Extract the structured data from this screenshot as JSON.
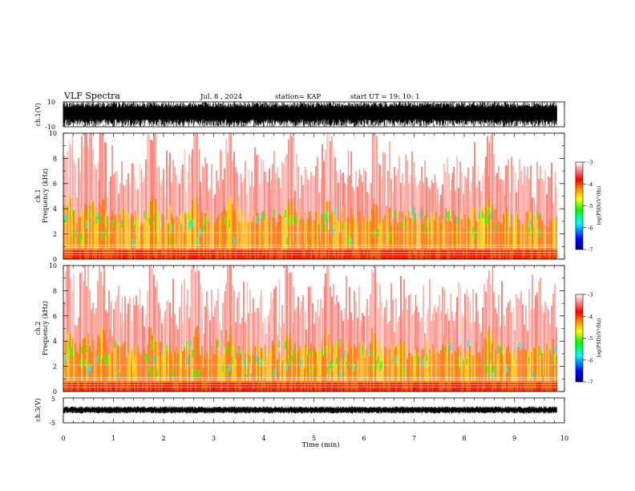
{
  "header": {
    "title": "VLF Spectra",
    "date": "Jul. 8 , 2024",
    "station": "station= KAP",
    "start": "start UT = 19: 10: 1"
  },
  "chart_data": [
    {
      "type": "line",
      "name": "ch1-waveform",
      "ylabel": "ch.1(V)",
      "ylim": [
        -10,
        10
      ],
      "yticks": [
        "10",
        "-10"
      ],
      "xlim": [
        0,
        10
      ],
      "xlabel": ""
    },
    {
      "type": "heatmap",
      "name": "ch1-spectrogram",
      "ylabel": "ch.1\nFrequency (kHz)",
      "ylim": [
        0,
        10
      ],
      "yticks": [
        "0",
        "2",
        "4",
        "6",
        "8",
        "10"
      ],
      "xlim": [
        0,
        9.85
      ],
      "colorbar": {
        "label": "log(PSD)(V²/Hz)",
        "range": [
          -7,
          -3
        ],
        "ticks": [
          "-3",
          "-4",
          "-5",
          "-6",
          "-7"
        ]
      }
    },
    {
      "type": "heatmap",
      "name": "ch2-spectrogram",
      "ylabel": "ch.2\nFrequency (kHz)",
      "ylim": [
        0,
        10
      ],
      "yticks": [
        "0",
        "2",
        "4",
        "6",
        "8",
        "10"
      ],
      "xlim": [
        0,
        9.85
      ],
      "colorbar": {
        "label": "log(PSD)(V²/Hz)",
        "range": [
          -7,
          -3
        ],
        "ticks": [
          "-3",
          "-4",
          "-5",
          "-6",
          "-7"
        ]
      }
    },
    {
      "type": "line",
      "name": "ch3-waveform",
      "ylabel": "ch.3(V)",
      "ylim": [
        -5,
        5
      ],
      "yticks": [
        "5",
        "-5"
      ],
      "xlim": [
        0,
        10
      ],
      "xlabel": "Time (min)",
      "xticks": [
        "0",
        "1",
        "2",
        "3",
        "4",
        "5",
        "6",
        "7",
        "8",
        "9",
        "10"
      ]
    }
  ],
  "colors": {
    "colormap": [
      "#000080",
      "#0000ff",
      "#00ffff",
      "#00ff00",
      "#ffff00",
      "#ff8000",
      "#ff0000",
      "#ffffff"
    ],
    "axis": "#000000"
  }
}
